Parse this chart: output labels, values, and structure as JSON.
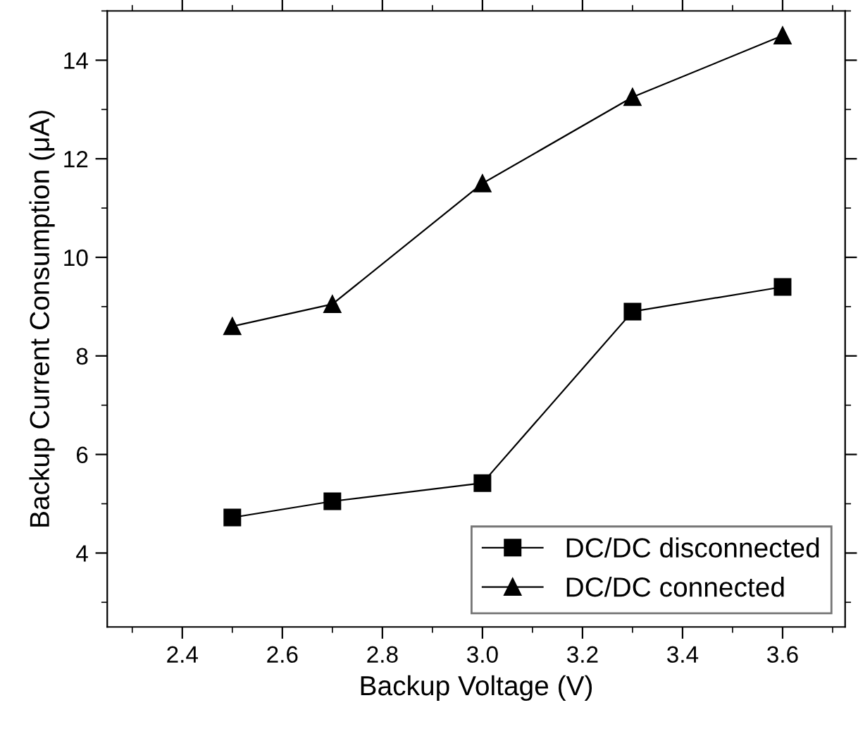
{
  "chart_data": {
    "type": "line",
    "xlabel": "Backup Voltage (V)",
    "ylabel": "Backup Current Consumption (μA)",
    "x": [
      2.5,
      2.7,
      3.0,
      3.3,
      3.6
    ],
    "series": [
      {
        "name": "DC/DC disconnected",
        "color": "#000000",
        "marker": "square",
        "values": [
          4.72,
          5.05,
          5.42,
          8.9,
          9.4
        ]
      },
      {
        "name": "DC/DC connected",
        "color": "#000000",
        "marker": "triangle",
        "values": [
          8.6,
          9.05,
          11.5,
          13.25,
          14.5
        ]
      }
    ],
    "xlim": [
      2.25,
      3.725
    ],
    "xticks": [
      2.4,
      2.6,
      2.8,
      {
        "value": 3,
        "label": "3.0"
      },
      3.2,
      3.4,
      3.6
    ],
    "ylim": [
      2.5,
      15
    ],
    "yticks": [
      4,
      6,
      8,
      10,
      12,
      14
    ],
    "grid": false,
    "legend": "bottom right",
    "line_style": "solid"
  }
}
